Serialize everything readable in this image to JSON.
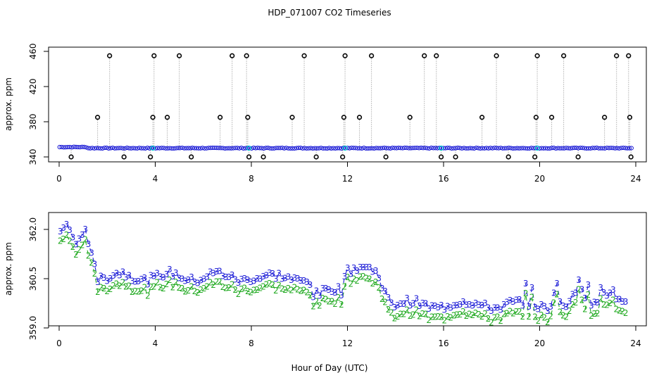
{
  "title": "HDP_071007  CO2 Timeseries",
  "xlabel": "Hour of Day (UTC)",
  "colors": {
    "series3": "#1b1bd6",
    "series2": "#22aa22",
    "cyan": "#00d0d0",
    "black": "#000000",
    "grey": "#888888"
  },
  "chart_data": [
    {
      "type": "scatter",
      "ylabel": "approx. ppm",
      "xlim": [
        0,
        24
      ],
      "ylim": [
        335,
        460
      ],
      "xticks": [
        0,
        4,
        8,
        12,
        16,
        20,
        24
      ],
      "yticks": [
        340,
        380,
        420,
        460
      ],
      "baseline": 350,
      "outlier_points": [
        [
          0.5,
          340
        ],
        [
          1.6,
          385
        ],
        [
          2.1,
          455
        ],
        [
          2.7,
          340
        ],
        [
          3.8,
          340
        ],
        [
          3.9,
          385
        ],
        [
          3.95,
          455
        ],
        [
          4.5,
          385
        ],
        [
          5.0,
          455
        ],
        [
          5.5,
          340
        ],
        [
          6.7,
          385
        ],
        [
          7.2,
          455
        ],
        [
          7.8,
          455
        ],
        [
          7.85,
          385
        ],
        [
          7.9,
          340
        ],
        [
          8.5,
          340
        ],
        [
          9.7,
          385
        ],
        [
          10.2,
          455
        ],
        [
          10.7,
          340
        ],
        [
          11.8,
          340
        ],
        [
          11.85,
          385
        ],
        [
          11.9,
          455
        ],
        [
          12.5,
          385
        ],
        [
          13.0,
          455
        ],
        [
          13.6,
          340
        ],
        [
          14.6,
          385
        ],
        [
          15.2,
          455
        ],
        [
          15.7,
          455
        ],
        [
          15.9,
          340
        ],
        [
          16.5,
          340
        ],
        [
          17.6,
          385
        ],
        [
          18.2,
          455
        ],
        [
          18.7,
          340
        ],
        [
          19.8,
          340
        ],
        [
          19.85,
          385
        ],
        [
          19.9,
          455
        ],
        [
          20.5,
          385
        ],
        [
          21.0,
          455
        ],
        [
          21.6,
          340
        ],
        [
          22.7,
          385
        ],
        [
          23.2,
          455
        ],
        [
          23.7,
          455
        ],
        [
          23.75,
          385
        ],
        [
          23.8,
          340
        ]
      ]
    },
    {
      "type": "line",
      "ylabel": "approx. ppm",
      "xlim": [
        0,
        24
      ],
      "ylim": [
        359.0,
        362.4
      ],
      "xticks": [
        0,
        4,
        8,
        12,
        16,
        20,
        24
      ],
      "yticks": [
        359.0,
        360.5,
        362.0
      ],
      "yticklabels": [
        "359.0",
        "360.5",
        "362.0"
      ],
      "series": [
        {
          "marker": "3"
        },
        {
          "marker": "2"
        }
      ]
    }
  ]
}
